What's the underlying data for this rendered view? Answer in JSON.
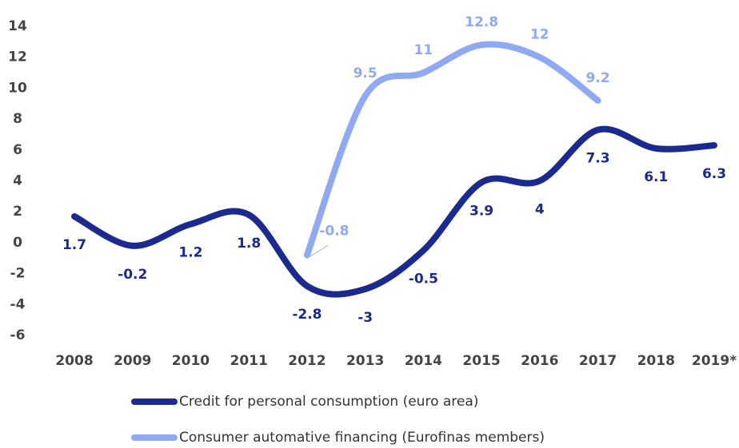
{
  "chart_data": {
    "type": "line",
    "categories": [
      "2008",
      "2009",
      "2010",
      "2011",
      "2012",
      "2013",
      "2014",
      "2015",
      "2016",
      "2017",
      "2018",
      "2019*"
    ],
    "series": [
      {
        "name": "Credit for personal consumption (euro area)",
        "color": "#1b2a8f",
        "values": [
          1.7,
          -0.2,
          1.2,
          1.8,
          -2.8,
          -3,
          -0.5,
          3.9,
          4,
          7.3,
          6.1,
          6.3
        ]
      },
      {
        "name": "Consumer automative financing (Eurofinas members)",
        "color": "#8faaf2",
        "values": [
          null,
          null,
          null,
          null,
          -0.8,
          9.5,
          11,
          12.8,
          12,
          9.2,
          null,
          null
        ]
      }
    ],
    "ylim": [
      -6,
      14
    ],
    "yticks": [
      -6,
      -4,
      -2,
      0,
      2,
      4,
      6,
      8,
      10,
      12,
      14
    ],
    "grid": false
  }
}
